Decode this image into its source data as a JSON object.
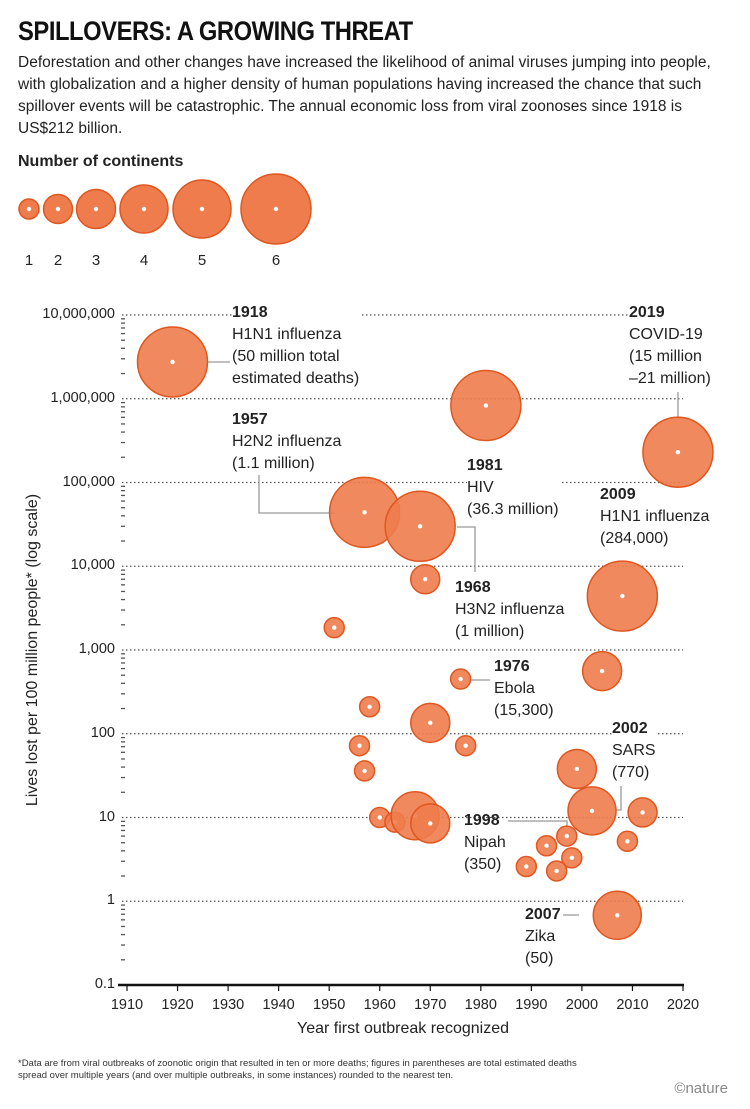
{
  "title": "SPILLOVERS: A GROWING THREAT",
  "subtitle": "Deforestation and other changes have increased the likelihood of animal viruses jumping into people, with globalization and a higher density of human populations having increased the chance that such spillover events will be catastrophic. The annual economic loss from viral zoonoses since 1918 is US$212 billion.",
  "footnote": "*Data are from viral outbreaks of zoonotic origin that resulted in ten or more deaths; figures in parentheses are total estimated deaths spread over multiple years (and over multiple outbreaks, in some instances) rounded to the nearest ten.",
  "credit": "©nature",
  "colors": {
    "fill": "#ee7c4c",
    "stroke": "#e0561f",
    "grid": "#555555",
    "leader": "#999999"
  },
  "chart_data": {
    "type": "scatter",
    "title": "SPILLOVERS: A GROWING THREAT",
    "xlabel": "Year first outbreak recognized",
    "ylabel": "Lives lost per 100 million people* (log scale)",
    "xlim": [
      1910,
      2020
    ],
    "ylim": [
      0.1,
      10000000
    ],
    "yscale": "log",
    "grid": "horizontal dotted",
    "x_ticks": [
      "1910",
      "1920",
      "1930",
      "1940",
      "1950",
      "1960",
      "1970",
      "1980",
      "1990",
      "2000",
      "2010",
      "2020"
    ],
    "y_ticks": [
      "10,000,000",
      "1,000,000",
      "100,000",
      "10,000",
      "1,000",
      "100",
      "10",
      "1",
      "0.1"
    ],
    "legend": {
      "title": "Number of continents",
      "placement": "top-left",
      "entries": [
        "1",
        "2",
        "3",
        "4",
        "5",
        "6"
      ]
    },
    "points": [
      {
        "year": 1919,
        "value": 2750000,
        "continents": 6
      },
      {
        "year": 1957,
        "value": 44000,
        "continents": 6
      },
      {
        "year": 1968,
        "value": 30000,
        "continents": 6
      },
      {
        "year": 1969,
        "value": 7000,
        "continents": 2
      },
      {
        "year": 1981,
        "value": 830000,
        "continents": 6
      },
      {
        "year": 2019,
        "value": 230000,
        "continents": 6
      },
      {
        "year": 2008,
        "value": 4400,
        "continents": 6
      },
      {
        "year": 1951,
        "value": 1850,
        "continents": 1
      },
      {
        "year": 2004,
        "value": 560,
        "continents": 3
      },
      {
        "year": 1976,
        "value": 450,
        "continents": 1
      },
      {
        "year": 1958,
        "value": 210,
        "continents": 1
      },
      {
        "year": 1970,
        "value": 135,
        "continents": 3
      },
      {
        "year": 1956,
        "value": 72,
        "continents": 1
      },
      {
        "year": 1977,
        "value": 72,
        "continents": 1
      },
      {
        "year": 1957,
        "value": 36,
        "continents": 1
      },
      {
        "year": 1999,
        "value": 38,
        "continents": 3
      },
      {
        "year": 2002,
        "value": 12,
        "continents": 4
      },
      {
        "year": 2012,
        "value": 11.5,
        "continents": 2
      },
      {
        "year": 1960,
        "value": 10,
        "continents": 1
      },
      {
        "year": 1963,
        "value": 8.8,
        "continents": 1
      },
      {
        "year": 1967,
        "value": 10.5,
        "continents": 4
      },
      {
        "year": 1970,
        "value": 8.5,
        "continents": 3
      },
      {
        "year": 1997,
        "value": 6,
        "continents": 1
      },
      {
        "year": 2009,
        "value": 5.2,
        "continents": 1
      },
      {
        "year": 1993,
        "value": 4.6,
        "continents": 1
      },
      {
        "year": 1998,
        "value": 3.3,
        "continents": 1
      },
      {
        "year": 1989,
        "value": 2.6,
        "continents": 1
      },
      {
        "year": 1995,
        "value": 2.3,
        "continents": 1
      },
      {
        "year": 2007,
        "value": 0.68,
        "continents": 4
      }
    ],
    "annotations": [
      {
        "year": "1918",
        "lines": [
          "H1N1 influenza",
          "(50 million total",
          "estimated deaths)"
        ]
      },
      {
        "year": "2019",
        "lines": [
          "COVID-19",
          "(15 million",
          "–21 million)"
        ]
      },
      {
        "year": "1957",
        "lines": [
          "H2N2 influenza",
          "(1.1 million)"
        ]
      },
      {
        "year": "1981",
        "lines": [
          "HIV",
          "(36.3 million)"
        ]
      },
      {
        "year": "2009",
        "lines": [
          "H1N1 influenza",
          "(284,000)"
        ]
      },
      {
        "year": "1968",
        "lines": [
          "H3N2 influenza",
          "(1 million)"
        ]
      },
      {
        "year": "1976",
        "lines": [
          "Ebola",
          "(15,300)"
        ]
      },
      {
        "year": "2002",
        "lines": [
          "SARS",
          "(770)"
        ]
      },
      {
        "year": "1998",
        "lines": [
          "Nipah",
          "(350)"
        ]
      },
      {
        "year": "2007",
        "lines": [
          "Zika",
          "(50)"
        ]
      }
    ]
  }
}
